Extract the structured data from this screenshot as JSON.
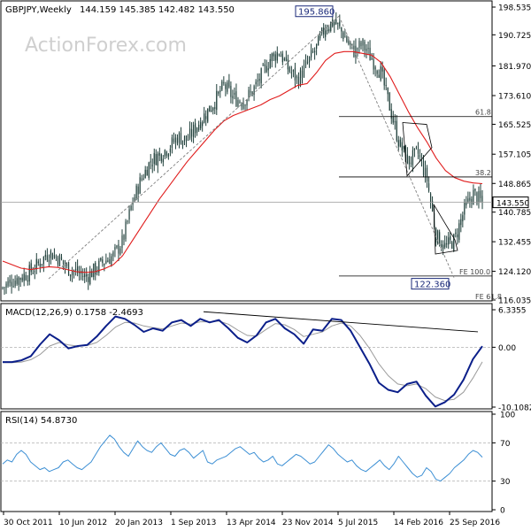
{
  "chart_data": {
    "type": "candlestick",
    "title": "GBPJPY,Weekly",
    "ohlc_header": "144.159 145.385 142.482 143.550",
    "watermark": "ActionForex.com",
    "colors": {
      "price": "#1f3f3a",
      "ma": "#e01c1c",
      "macd": "#0b1f8a",
      "signal": "#9a9a9a",
      "rsi": "#3c8fd4",
      "levels": "#000000",
      "dotted": "#7f7f7f"
    },
    "price_panel": {
      "ylim": [
        116.035,
        198.535
      ],
      "ticks": [
        "198.535",
        "190.725",
        "181.970",
        "173.610",
        "165.525",
        "157.105",
        "148.865",
        "140.785",
        "132.455",
        "124.120",
        "116.035"
      ],
      "last_price": "143.550",
      "levels": [
        {
          "label": "61.8",
          "value": 167.7
        },
        {
          "label": "38.2",
          "value": 150.7
        },
        {
          "label": "FE 100.0",
          "value": 122.8
        },
        {
          "label": "FE 61.8",
          "value": 115.8
        }
      ],
      "callouts": [
        {
          "label": "195.860",
          "value": 195.86
        },
        {
          "label": "122.360",
          "value": 122.36
        }
      ],
      "close_series": [
        119.5,
        121.5,
        122.5,
        124.0,
        126.5,
        129.5,
        128.0,
        125.0,
        124.0,
        122.5,
        124.5,
        127.0,
        128.5,
        132.5,
        143.0,
        150.0,
        155.0,
        157.0,
        159.0,
        162.0,
        161.0,
        165.0,
        168.5,
        172.0,
        176.5,
        173.0,
        172.0,
        174.5,
        179.0,
        184.0,
        186.0,
        181.0,
        178.0,
        182.5,
        187.0,
        193.0,
        194.5,
        190.5,
        186.0,
        188.0,
        184.0,
        180.0,
        170.0,
        160.0,
        155.0,
        157.5,
        150.0,
        134.0,
        131.0,
        133.0,
        141.0,
        146.0,
        143.55
      ],
      "ma_series": [
        127.0,
        126.0,
        125.0,
        124.6,
        125.0,
        125.4,
        125.2,
        124.6,
        124.0,
        123.8,
        124.0,
        124.8,
        126.0,
        128.5,
        132.5,
        136.5,
        140.5,
        144.5,
        148.0,
        151.5,
        155.0,
        158.0,
        161.0,
        164.0,
        166.5,
        168.0,
        169.0,
        170.0,
        171.0,
        172.5,
        173.5,
        175.0,
        176.5,
        177.0,
        180.0,
        183.5,
        185.5,
        186.0,
        186.0,
        185.5,
        185.0,
        183.0,
        179.0,
        174.0,
        169.0,
        164.5,
        160.5,
        156.0,
        152.5,
        150.5,
        149.5,
        149.0,
        148.8
      ]
    },
    "macd_panel": {
      "label": "MACD(12,26,9) 0.1758 -2.4693",
      "ylim": [
        -10.1082,
        6.3355
      ],
      "ticks": [
        "6.3355",
        "0.00",
        "-10.1082"
      ],
      "macd_series": [
        -2.5,
        -2.5,
        -2.2,
        -1.5,
        0.5,
        2.2,
        1.2,
        -0.2,
        0.2,
        0.4,
        1.8,
        3.6,
        5.2,
        4.8,
        3.8,
        2.6,
        3.2,
        2.8,
        4.2,
        4.6,
        3.6,
        4.8,
        4.2,
        4.6,
        3.2,
        1.6,
        0.8,
        2.0,
        4.2,
        4.8,
        3.2,
        2.2,
        0.6,
        3.0,
        2.8,
        4.8,
        4.6,
        2.8,
        0.0,
        -2.8,
        -6.0,
        -7.2,
        -7.6,
        -6.2,
        -5.8,
        -8.2,
        -10.0,
        -9.3,
        -8.0,
        -5.5,
        -2.0,
        0.18
      ],
      "signal_series": [
        -2.6,
        -2.6,
        -2.5,
        -2.1,
        -1.2,
        0.2,
        0.8,
        0.4,
        0.2,
        0.3,
        0.8,
        2.0,
        3.4,
        4.2,
        4.1,
        3.6,
        3.3,
        3.1,
        3.6,
        4.1,
        3.9,
        4.3,
        4.3,
        4.4,
        3.9,
        2.9,
        2.0,
        1.9,
        3.0,
        4.0,
        3.8,
        3.0,
        1.8,
        2.2,
        2.6,
        3.6,
        4.1,
        3.6,
        2.0,
        -0.2,
        -2.8,
        -4.8,
        -6.2,
        -6.5,
        -6.2,
        -7.0,
        -8.4,
        -9.0,
        -8.8,
        -7.6,
        -5.2,
        -2.47
      ]
    },
    "rsi_panel": {
      "label": "RSI(14) 54.8730",
      "ylim": [
        0,
        100
      ],
      "ticks": [
        "100",
        "70",
        "30",
        "0"
      ],
      "rsi_series": [
        48,
        52,
        50,
        58,
        62,
        58,
        50,
        46,
        42,
        44,
        40,
        42,
        44,
        50,
        52,
        48,
        44,
        42,
        46,
        50,
        58,
        66,
        72,
        78,
        74,
        66,
        60,
        56,
        64,
        72,
        66,
        62,
        60,
        66,
        70,
        64,
        58,
        56,
        62,
        64,
        60,
        54,
        58,
        62,
        50,
        48,
        52,
        54,
        56,
        60,
        64,
        66,
        62,
        58,
        60,
        54,
        50,
        52,
        56,
        48,
        46,
        50,
        54,
        58,
        56,
        52,
        48,
        50,
        56,
        62,
        68,
        64,
        58,
        54,
        50,
        52,
        46,
        42,
        40,
        44,
        48,
        52,
        46,
        42,
        48,
        56,
        50,
        44,
        38,
        34,
        36,
        44,
        40,
        32,
        30,
        34,
        38,
        44,
        48,
        52,
        58,
        62,
        60,
        55
      ]
    },
    "x_axis": {
      "ticks": [
        "30 Oct 2011",
        "10 Jun 2012",
        "20 Jan 2013",
        "1 Sep 2013",
        "13 Apr 2014",
        "23 Nov 2014",
        "5 Jul 2015",
        "14 Feb 2016",
        "25 Sep 2016"
      ]
    }
  }
}
